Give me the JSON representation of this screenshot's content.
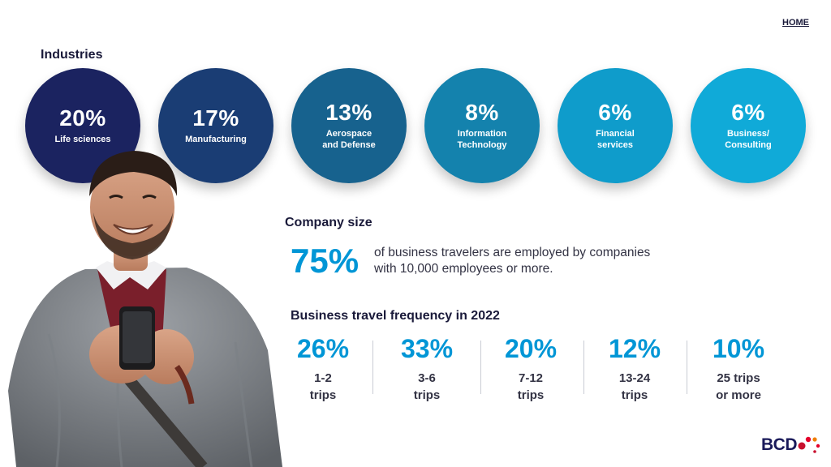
{
  "nav": {
    "home_label": "HOME"
  },
  "industries": {
    "title": "Industries",
    "items": [
      {
        "percent": "20%",
        "label": "Life sciences",
        "color": "#1b2360"
      },
      {
        "percent": "17%",
        "label": "Manufacturing",
        "color": "#1a3d74"
      },
      {
        "percent": "13%",
        "label": "Aerospace\nand Defense",
        "color": "#17628e"
      },
      {
        "percent": "8%",
        "label": "Information\nTechnology",
        "color": "#1482ad"
      },
      {
        "percent": "6%",
        "label": "Financial\nservices",
        "color": "#0f9ccb"
      },
      {
        "percent": "6%",
        "label": "Business/\nConsulting",
        "color": "#10aad8"
      }
    ]
  },
  "company_size": {
    "title": "Company size",
    "percent": "75%",
    "text": "of business travelers are employed by companies with 10,000 employees or more."
  },
  "frequency": {
    "title": "Business travel frequency in 2022",
    "items": [
      {
        "percent": "26%",
        "label": "1-2\ntrips"
      },
      {
        "percent": "33%",
        "label": "3-6\ntrips"
      },
      {
        "percent": "20%",
        "label": "7-12\ntrips"
      },
      {
        "percent": "12%",
        "label": "13-24\ntrips"
      },
      {
        "percent": "10%",
        "label": "25 trips\nor more"
      }
    ]
  },
  "brand": {
    "logo_text": "BCD",
    "dot_colors": [
      "#e4002b",
      "#f07d00",
      "#c8102e"
    ]
  },
  "colors": {
    "accent": "#0096d6",
    "dark_navy": "#1a1a3a"
  }
}
